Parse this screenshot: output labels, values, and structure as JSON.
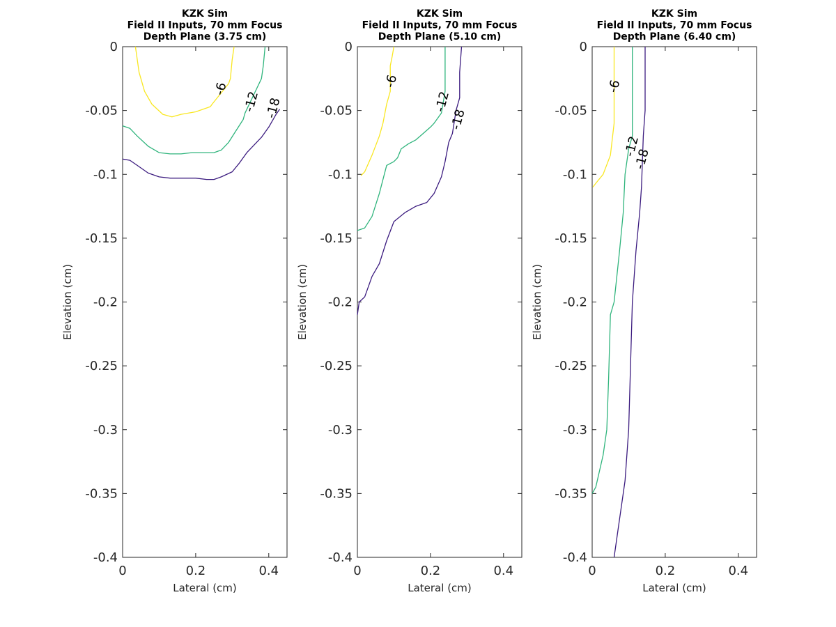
{
  "chart_data": [
    {
      "type": "contour",
      "title": [
        "KZK Sim",
        "Field II Inputs, 70 mm Focus",
        "Depth Plane (3.75 cm)"
      ],
      "xlabel": "Lateral (cm)",
      "ylabel": "Elevation (cm)",
      "xlim": [
        0,
        0.45
      ],
      "ylim": [
        -0.4,
        0
      ],
      "xticks": [
        0,
        0.2,
        0.4
      ],
      "xticklabels": [
        "0",
        "0.2",
        "0.4"
      ],
      "yticks": [
        0,
        -0.05,
        -0.1,
        -0.15,
        -0.2,
        -0.25,
        -0.3,
        -0.35,
        -0.4
      ],
      "yticklabels": [
        "0",
        "-0.05",
        "-0.1",
        "-0.15",
        "-0.2",
        "-0.25",
        "-0.3",
        "-0.35",
        "-0.4"
      ],
      "grid": false,
      "series": [
        {
          "name": "-6",
          "color": "#f9e721",
          "points": [
            [
              0.035,
              0
            ],
            [
              0.045,
              -0.02
            ],
            [
              0.06,
              -0.035
            ],
            [
              0.08,
              -0.045
            ],
            [
              0.11,
              -0.053
            ],
            [
              0.135,
              -0.055
            ],
            [
              0.16,
              -0.053
            ],
            [
              0.2,
              -0.051
            ],
            [
              0.24,
              -0.047
            ],
            [
              0.245,
              -0.045
            ],
            [
              0.29,
              -0.029
            ],
            [
              0.29,
              -0.029
            ],
            [
              0.295,
              -0.025
            ],
            [
              0.3,
              -0.01
            ],
            [
              0.305,
              0
            ]
          ],
          "labels": [
            {
              "text": "-6",
              "x": 0.268,
              "y": -0.033
            }
          ]
        },
        {
          "name": "-12",
          "color": "#2fb47c",
          "points": [
            [
              0,
              -0.062
            ],
            [
              0.02,
              -0.064
            ],
            [
              0.04,
              -0.07
            ],
            [
              0.07,
              -0.078
            ],
            [
              0.1,
              -0.083
            ],
            [
              0.13,
              -0.084
            ],
            [
              0.16,
              -0.084
            ],
            [
              0.19,
              -0.083
            ],
            [
              0.22,
              -0.083
            ],
            [
              0.25,
              -0.083
            ],
            [
              0.27,
              -0.081
            ],
            [
              0.29,
              -0.075
            ],
            [
              0.31,
              -0.066
            ],
            [
              0.33,
              -0.057
            ],
            [
              0.335,
              -0.052
            ],
            [
              0.38,
              -0.025
            ],
            [
              0.385,
              -0.015
            ],
            [
              0.39,
              0
            ]
          ],
          "labels": [
            {
              "text": "-12",
              "x": 0.352,
              "y": -0.043
            }
          ]
        },
        {
          "name": "-18",
          "color": "#3b1b7f",
          "points": [
            [
              0,
              -0.088
            ],
            [
              0.02,
              -0.089
            ],
            [
              0.04,
              -0.093
            ],
            [
              0.07,
              -0.099
            ],
            [
              0.1,
              -0.102
            ],
            [
              0.13,
              -0.103
            ],
            [
              0.16,
              -0.103
            ],
            [
              0.2,
              -0.103
            ],
            [
              0.23,
              -0.104
            ],
            [
              0.25,
              -0.104
            ],
            [
              0.27,
              -0.102
            ],
            [
              0.3,
              -0.098
            ],
            [
              0.32,
              -0.091
            ],
            [
              0.34,
              -0.083
            ],
            [
              0.36,
              -0.077
            ],
            [
              0.38,
              -0.071
            ],
            [
              0.4,
              -0.063
            ],
            [
              0.42,
              -0.053
            ],
            [
              0.43,
              -0.049
            ]
          ],
          "labels": [
            {
              "text": "-18",
              "x": 0.412,
              "y": -0.048
            }
          ]
        }
      ]
    },
    {
      "type": "contour",
      "title": [
        "KZK Sim",
        "Field II Inputs, 70 mm Focus",
        "Depth Plane (5.10 cm)"
      ],
      "xlabel": "Lateral (cm)",
      "ylabel": "Elevation (cm)",
      "xlim": [
        0,
        0.45
      ],
      "ylim": [
        -0.4,
        0
      ],
      "xticks": [
        0,
        0.2,
        0.4
      ],
      "xticklabels": [
        "0",
        "0.2",
        "0.4"
      ],
      "yticks": [
        0,
        -0.05,
        -0.1,
        -0.15,
        -0.2,
        -0.25,
        -0.3,
        -0.35,
        -0.4
      ],
      "yticklabels": [
        "0",
        "-0.05",
        "-0.1",
        "-0.15",
        "-0.2",
        "-0.25",
        "-0.3",
        "-0.35",
        "-0.4"
      ],
      "grid": false,
      "series": [
        {
          "name": "-6",
          "color": "#f9e721",
          "points": [
            [
              0.01,
              -0.101
            ],
            [
              0.02,
              -0.098
            ],
            [
              0.04,
              -0.085
            ],
            [
              0.06,
              -0.07
            ],
            [
              0.07,
              -0.06
            ],
            [
              0.08,
              -0.045
            ],
            [
              0.09,
              -0.035
            ],
            [
              0.09,
              -0.015
            ],
            [
              0.095,
              -0.008
            ],
            [
              0.1,
              0
            ]
          ],
          "labels": [
            {
              "text": "-6",
              "x": 0.092,
              "y": -0.027
            }
          ]
        },
        {
          "name": "-12",
          "color": "#2fb47c",
          "points": [
            [
              0,
              -0.144
            ],
            [
              0.02,
              -0.142
            ],
            [
              0.04,
              -0.133
            ],
            [
              0.06,
              -0.115
            ],
            [
              0.08,
              -0.093
            ],
            [
              0.1,
              -0.09
            ],
            [
              0.11,
              -0.087
            ],
            [
              0.12,
              -0.08
            ],
            [
              0.14,
              -0.076
            ],
            [
              0.16,
              -0.073
            ],
            [
              0.18,
              -0.068
            ],
            [
              0.2,
              -0.063
            ],
            [
              0.21,
              -0.06
            ],
            [
              0.23,
              -0.052
            ],
            [
              0.24,
              -0.035
            ],
            [
              0.24,
              -0.02
            ],
            [
              0.24,
              0
            ]
          ],
          "labels": [
            {
              "text": "-12",
              "x": 0.232,
              "y": -0.043
            }
          ]
        },
        {
          "name": "-18",
          "color": "#3b1b7f",
          "points": [
            [
              0,
              -0.21
            ],
            [
              0.005,
              -0.2
            ],
            [
              0.02,
              -0.196
            ],
            [
              0.04,
              -0.18
            ],
            [
              0.06,
              -0.17
            ],
            [
              0.08,
              -0.152
            ],
            [
              0.1,
              -0.137
            ],
            [
              0.13,
              -0.13
            ],
            [
              0.16,
              -0.125
            ],
            [
              0.19,
              -0.122
            ],
            [
              0.21,
              -0.115
            ],
            [
              0.23,
              -0.102
            ],
            [
              0.24,
              -0.09
            ],
            [
              0.25,
              -0.075
            ],
            [
              0.26,
              -0.068
            ],
            [
              0.27,
              -0.05
            ],
            [
              0.28,
              -0.04
            ],
            [
              0.28,
              -0.02
            ],
            [
              0.285,
              0
            ]
          ],
          "labels": [
            {
              "text": "-18",
              "x": 0.275,
              "y": -0.057
            }
          ]
        }
      ]
    },
    {
      "type": "contour",
      "title": [
        "KZK Sim",
        "Field II Inputs, 70 mm Focus",
        "Depth Plane (6.40 cm)"
      ],
      "xlabel": "Lateral (cm)",
      "ylabel": "Elevation (cm)",
      "xlim": [
        0,
        0.45
      ],
      "ylim": [
        -0.4,
        0
      ],
      "xticks": [
        0,
        0.2,
        0.4
      ],
      "xticklabels": [
        "0",
        "0.2",
        "0.4"
      ],
      "yticks": [
        0,
        -0.05,
        -0.1,
        -0.15,
        -0.2,
        -0.25,
        -0.3,
        -0.35,
        -0.4
      ],
      "yticklabels": [
        "0",
        "-0.05",
        "-0.1",
        "-0.15",
        "-0.2",
        "-0.25",
        "-0.3",
        "-0.35",
        "-0.4"
      ],
      "grid": false,
      "series": [
        {
          "name": "-6",
          "color": "#f9e721",
          "points": [
            [
              0.002,
              -0.11
            ],
            [
              0.01,
              -0.107
            ],
            [
              0.03,
              -0.1
            ],
            [
              0.05,
              -0.085
            ],
            [
              0.06,
              -0.06
            ],
            [
              0.06,
              -0.045
            ],
            [
              0.06,
              -0.02
            ],
            [
              0.06,
              -0.01
            ],
            [
              0.06,
              0
            ]
          ],
          "labels": [
            {
              "text": "-6",
              "x": 0.06,
              "y": -0.031
            }
          ]
        },
        {
          "name": "-12",
          "color": "#2fb47c",
          "points": [
            [
              0,
              -0.35
            ],
            [
              0.01,
              -0.345
            ],
            [
              0.03,
              -0.32
            ],
            [
              0.04,
              -0.3
            ],
            [
              0.045,
              -0.26
            ],
            [
              0.05,
              -0.21
            ],
            [
              0.06,
              -0.2
            ],
            [
              0.075,
              -0.16
            ],
            [
              0.085,
              -0.13
            ],
            [
              0.09,
              -0.1
            ],
            [
              0.1,
              -0.08
            ],
            [
              0.11,
              -0.07
            ],
            [
              0.11,
              -0.05
            ],
            [
              0.11,
              -0.02
            ],
            [
              0.11,
              0
            ]
          ],
          "labels": [
            {
              "text": "-12",
              "x": 0.108,
              "y": -0.078
            }
          ]
        },
        {
          "name": "-18",
          "color": "#3b1b7f",
          "points": [
            [
              0.06,
              -0.4
            ],
            [
              0.07,
              -0.38
            ],
            [
              0.09,
              -0.34
            ],
            [
              0.1,
              -0.3
            ],
            [
              0.11,
              -0.2
            ],
            [
              0.12,
              -0.16
            ],
            [
              0.13,
              -0.13
            ],
            [
              0.135,
              -0.11
            ],
            [
              0.14,
              -0.07
            ],
            [
              0.145,
              -0.05
            ],
            [
              0.145,
              -0.02
            ],
            [
              0.145,
              0
            ]
          ],
          "labels": [
            {
              "text": "-18",
              "x": 0.136,
              "y": -0.088
            }
          ]
        }
      ]
    }
  ]
}
